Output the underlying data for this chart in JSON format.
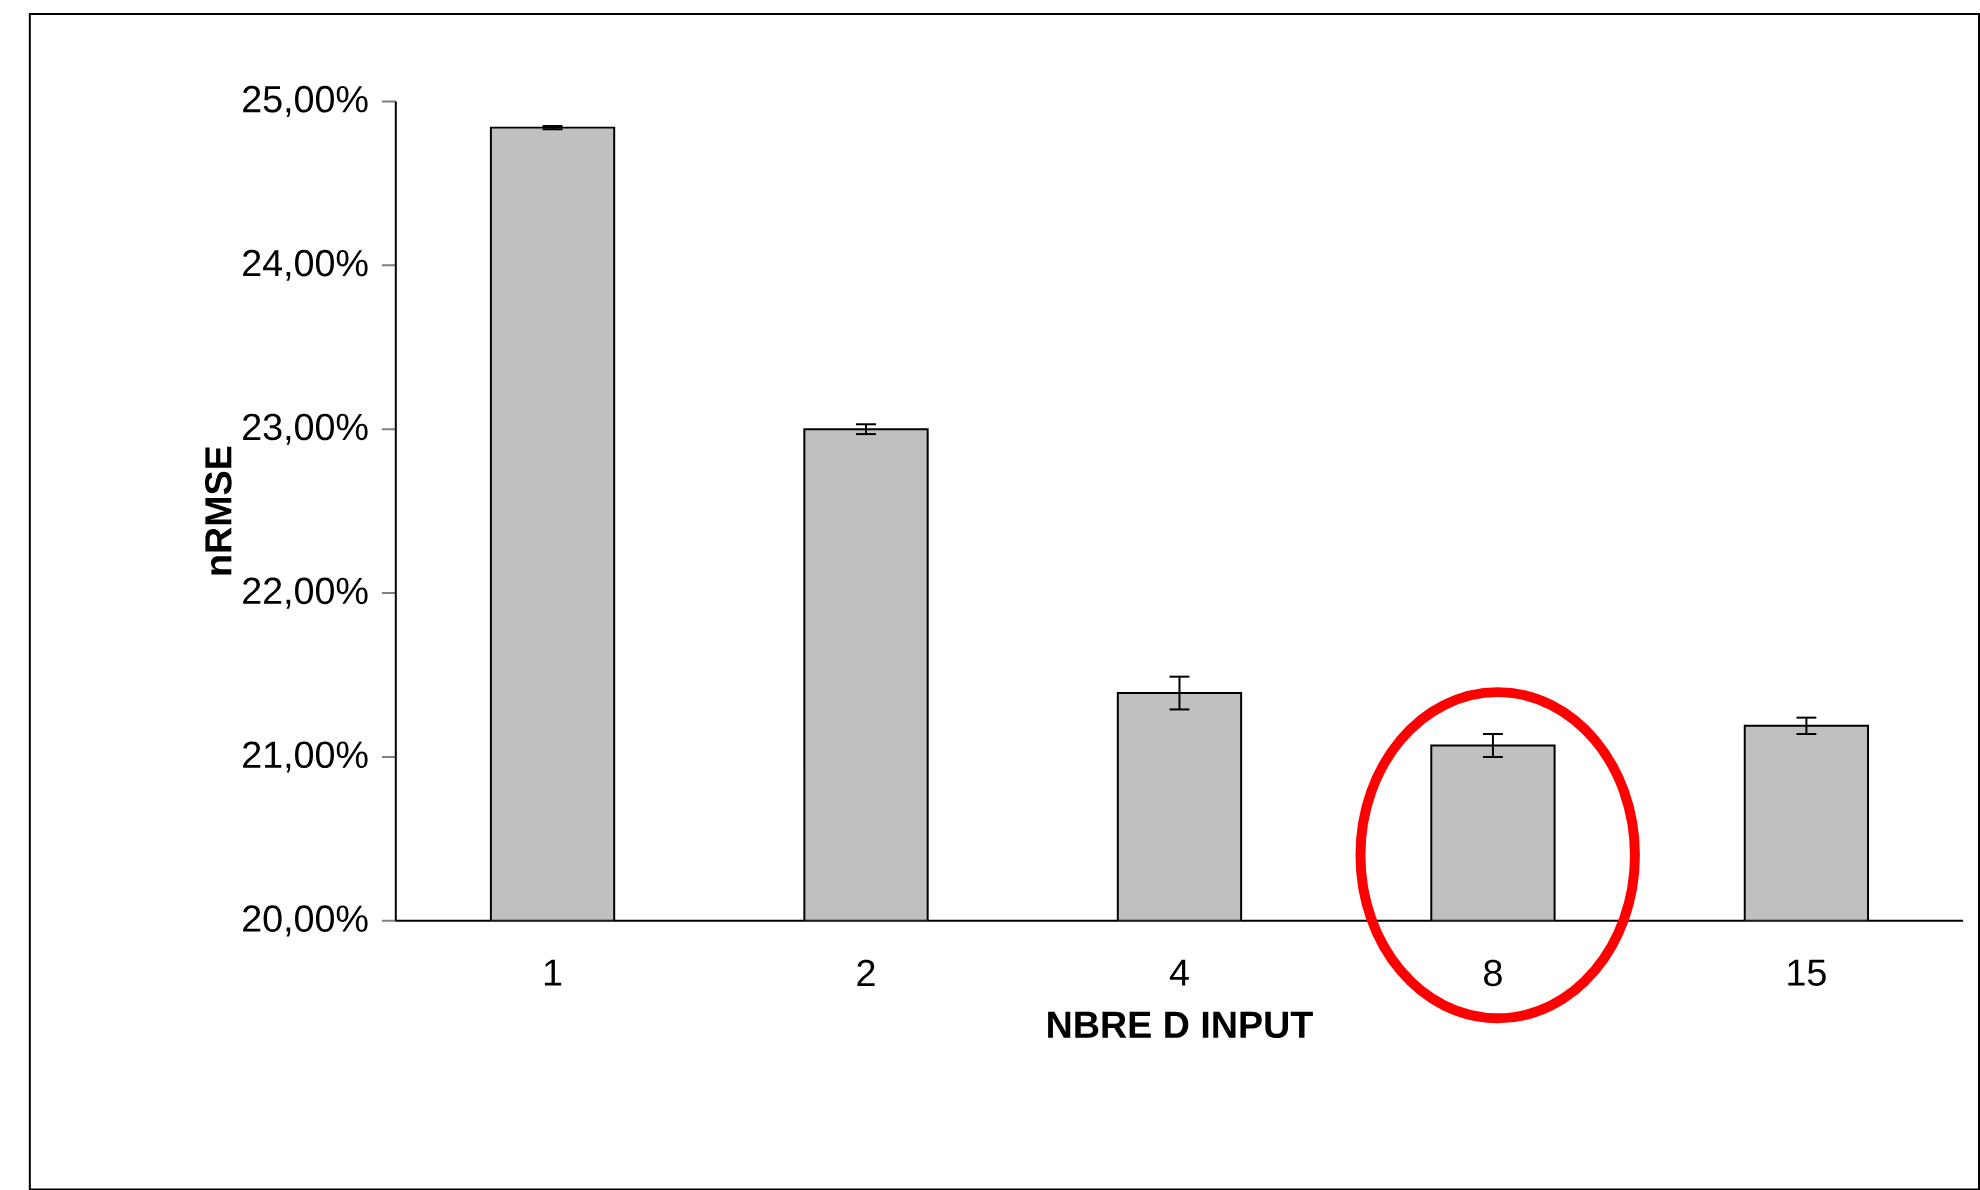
{
  "chart_data": {
    "type": "bar",
    "xlabel": "NBRE D INPUT",
    "ylabel": "nRMSE",
    "categories": [
      "1",
      "2",
      "4",
      "8",
      "15"
    ],
    "values": [
      24.84,
      23.0,
      21.39,
      21.07,
      21.19
    ],
    "errors": [
      0.01,
      0.03,
      0.1,
      0.07,
      0.05
    ],
    "color": "#c0c0c0",
    "ylim": [
      20,
      25
    ],
    "yticks": [
      {
        "value": 20,
        "label": "20,00%"
      },
      {
        "value": 21,
        "label": "21,00%"
      },
      {
        "value": 22,
        "label": "22,00%"
      },
      {
        "value": 23,
        "label": "23,00%"
      },
      {
        "value": 24,
        "label": "24,00%"
      },
      {
        "value": 25,
        "label": "25,00%"
      }
    ],
    "grid": false
  }
}
